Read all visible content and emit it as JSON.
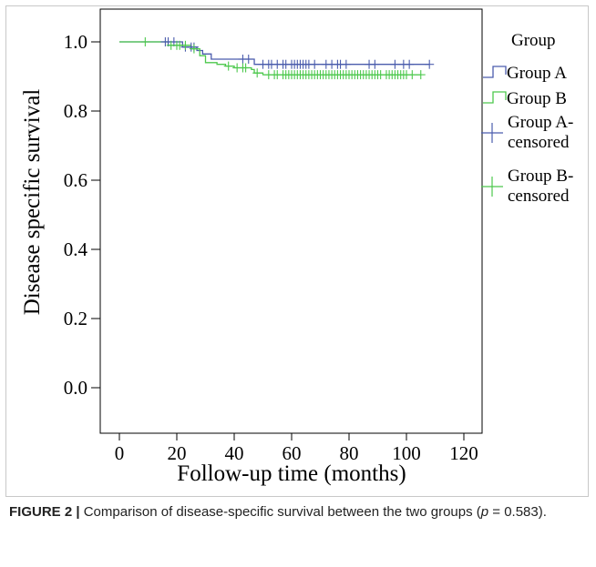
{
  "chart_data": {
    "type": "line",
    "title": "",
    "xlabel": "Follow-up time (months)",
    "ylabel": "Disease specific survival",
    "xlim": [
      0,
      120
    ],
    "ylim": [
      0.0,
      1.0
    ],
    "xticks": [
      "0",
      "20",
      "40",
      "60",
      "80",
      "100",
      "120"
    ],
    "yticks": [
      "0.0",
      "0.2",
      "0.4",
      "0.6",
      "0.8",
      "1.0"
    ],
    "grid": false,
    "legend_position": "right",
    "legend_title": "Group",
    "legend": [
      {
        "label": "Group A",
        "kind": "step",
        "color": "#4b5cad"
      },
      {
        "label": "Group B",
        "kind": "step",
        "color": "#4cc84c"
      },
      {
        "label": "Group A-censored",
        "kind": "censor",
        "color": "#4b5cad"
      },
      {
        "label": "Group B-censored",
        "kind": "censor",
        "color": "#4cc84c"
      }
    ],
    "series": [
      {
        "name": "Group A",
        "color": "#4b5cad",
        "steps": [
          [
            0,
            1.0
          ],
          [
            22,
            0.985
          ],
          [
            27,
            0.975
          ],
          [
            29,
            0.965
          ],
          [
            32,
            0.95
          ],
          [
            47,
            0.935
          ],
          [
            108,
            0.935
          ]
        ],
        "censored": [
          [
            16,
            1.0
          ],
          [
            17,
            1.0
          ],
          [
            19,
            1.0
          ],
          [
            23,
            0.985
          ],
          [
            25,
            0.985
          ],
          [
            26,
            0.985
          ],
          [
            43,
            0.95
          ],
          [
            45,
            0.95
          ],
          [
            50,
            0.935
          ],
          [
            52,
            0.935
          ],
          [
            53,
            0.935
          ],
          [
            55,
            0.935
          ],
          [
            57,
            0.935
          ],
          [
            58,
            0.935
          ],
          [
            60,
            0.935
          ],
          [
            61,
            0.935
          ],
          [
            62,
            0.935
          ],
          [
            63,
            0.935
          ],
          [
            64,
            0.935
          ],
          [
            65,
            0.935
          ],
          [
            66,
            0.935
          ],
          [
            68,
            0.935
          ],
          [
            72,
            0.935
          ],
          [
            74,
            0.935
          ],
          [
            76,
            0.935
          ],
          [
            77,
            0.935
          ],
          [
            79,
            0.935
          ],
          [
            87,
            0.935
          ],
          [
            89,
            0.935
          ],
          [
            96,
            0.935
          ],
          [
            99,
            0.935
          ],
          [
            101,
            0.935
          ],
          [
            108,
            0.935
          ]
        ]
      },
      {
        "name": "Group B",
        "color": "#4cc84c",
        "steps": [
          [
            0,
            1.0
          ],
          [
            17,
            0.99
          ],
          [
            25,
            0.98
          ],
          [
            28,
            0.96
          ],
          [
            30,
            0.94
          ],
          [
            34,
            0.935
          ],
          [
            37,
            0.93
          ],
          [
            40,
            0.925
          ],
          [
            46,
            0.92
          ],
          [
            47,
            0.91
          ],
          [
            50,
            0.905
          ],
          [
            105,
            0.905
          ]
        ],
        "censored": [
          [
            9,
            1.0
          ],
          [
            18,
            0.99
          ],
          [
            20,
            0.99
          ],
          [
            21,
            0.99
          ],
          [
            23,
            0.99
          ],
          [
            26,
            0.98
          ],
          [
            38,
            0.93
          ],
          [
            41,
            0.925
          ],
          [
            43,
            0.925
          ],
          [
            44,
            0.925
          ],
          [
            48,
            0.91
          ],
          [
            52,
            0.905
          ],
          [
            54,
            0.905
          ],
          [
            55,
            0.905
          ],
          [
            57,
            0.905
          ],
          [
            58,
            0.905
          ],
          [
            59,
            0.905
          ],
          [
            60,
            0.905
          ],
          [
            61,
            0.905
          ],
          [
            62,
            0.905
          ],
          [
            63,
            0.905
          ],
          [
            64,
            0.905
          ],
          [
            65,
            0.905
          ],
          [
            66,
            0.905
          ],
          [
            67,
            0.905
          ],
          [
            68,
            0.905
          ],
          [
            69,
            0.905
          ],
          [
            70,
            0.905
          ],
          [
            71,
            0.905
          ],
          [
            72,
            0.905
          ],
          [
            73,
            0.905
          ],
          [
            74,
            0.905
          ],
          [
            75,
            0.905
          ],
          [
            76,
            0.905
          ],
          [
            77,
            0.905
          ],
          [
            78,
            0.905
          ],
          [
            79,
            0.905
          ],
          [
            80,
            0.905
          ],
          [
            81,
            0.905
          ],
          [
            82,
            0.905
          ],
          [
            83,
            0.905
          ],
          [
            84,
            0.905
          ],
          [
            85,
            0.905
          ],
          [
            86,
            0.905
          ],
          [
            87,
            0.905
          ],
          [
            88,
            0.905
          ],
          [
            89,
            0.905
          ],
          [
            90,
            0.905
          ],
          [
            91,
            0.905
          ],
          [
            93,
            0.905
          ],
          [
            94,
            0.905
          ],
          [
            95,
            0.905
          ],
          [
            96,
            0.905
          ],
          [
            97,
            0.905
          ],
          [
            98,
            0.905
          ],
          [
            99,
            0.905
          ],
          [
            100,
            0.905
          ],
          [
            102,
            0.905
          ],
          [
            105,
            0.905
          ]
        ]
      }
    ]
  },
  "caption": {
    "label": "FIGURE 2 |",
    "text_before": " Comparison of disease-specific survival between the two groups (",
    "p_symbol": "p",
    "text_after": " = 0.583)."
  }
}
